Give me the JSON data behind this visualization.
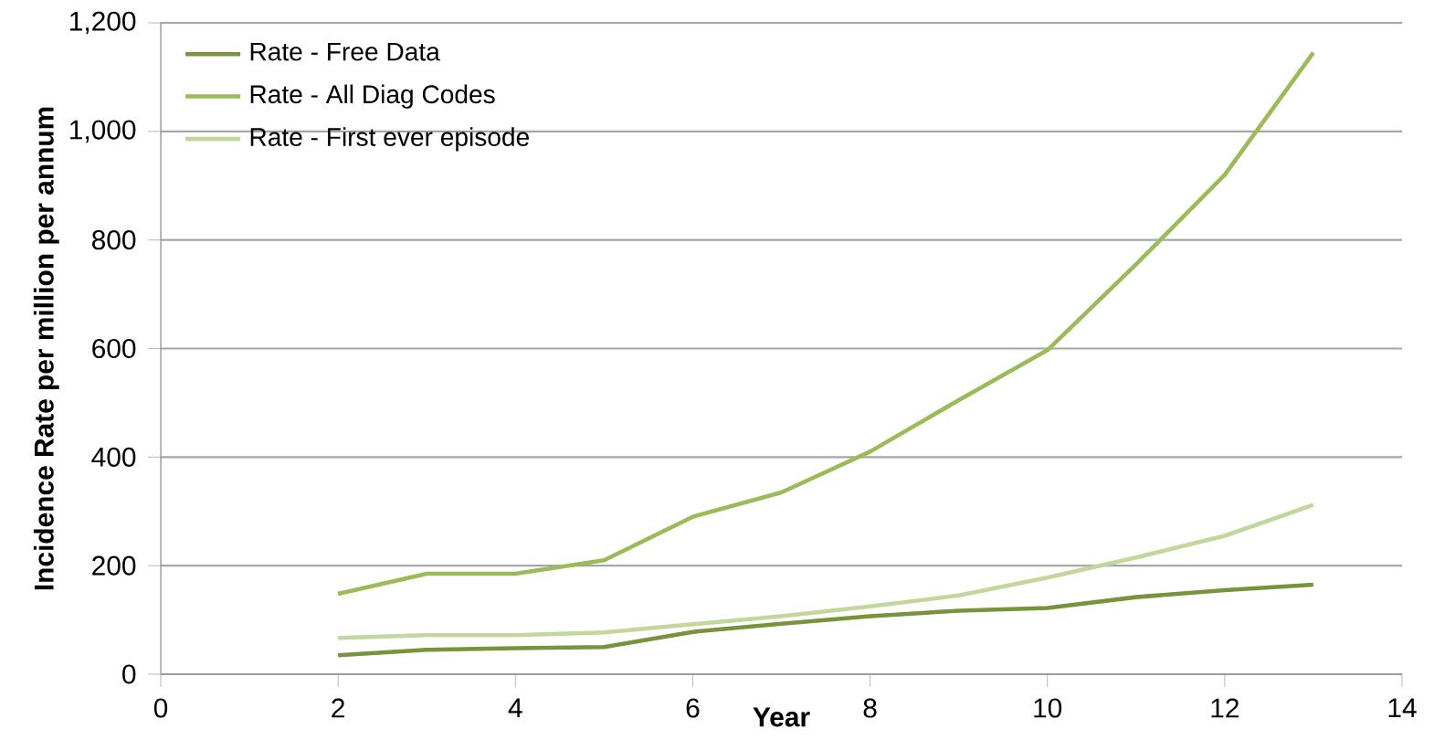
{
  "chart_data": {
    "type": "line",
    "xlabel": "Year",
    "ylabel": "Incidence Rate per million  per annum",
    "x": [
      2,
      3,
      4,
      5,
      6,
      7,
      8,
      9,
      10,
      11,
      12,
      13
    ],
    "series": [
      {
        "name": "Rate - Free Data",
        "color": "#77933c",
        "values": [
          35,
          45,
          48,
          50,
          78,
          93,
          107,
          117,
          122,
          142,
          155,
          165
        ]
      },
      {
        "name": "Rate - All Diag Codes",
        "color": "#9bbb59",
        "values": [
          148,
          185,
          185,
          210,
          290,
          335,
          410,
          505,
          597,
          755,
          920,
          1145
        ]
      },
      {
        "name": "Rate - First ever episode",
        "color": "#c3d69b",
        "values": [
          67,
          72,
          72,
          77,
          92,
          107,
          125,
          145,
          178,
          215,
          255,
          312
        ]
      }
    ],
    "xlim": [
      0,
      14
    ],
    "ylim": [
      0,
      1200
    ],
    "xticks": [
      0,
      2,
      4,
      6,
      8,
      10,
      12,
      14
    ],
    "yticks": [
      0,
      200,
      400,
      600,
      800,
      {
        "value": 1000,
        "label": "1,000"
      },
      {
        "value": 1200,
        "label": "1,200"
      }
    ],
    "grid": "y",
    "legend": "top left",
    "marker": "none",
    "line_style": "solid"
  }
}
